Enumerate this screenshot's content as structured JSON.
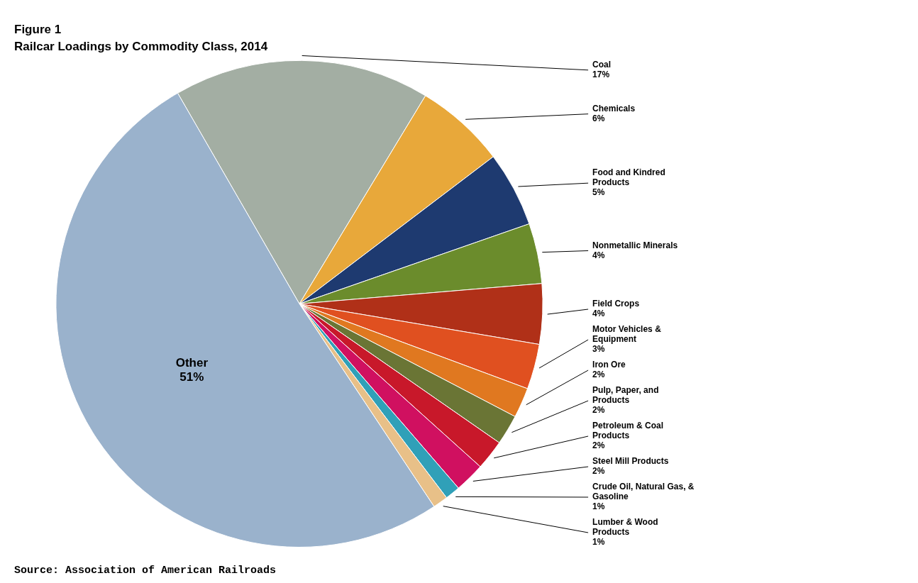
{
  "chart_data": {
    "type": "pie",
    "title": "Figure 1",
    "subtitle": "Railcar Loadings by Commodity Class, 2014",
    "categories": [
      "Coal",
      "Chemicals",
      "Food and Kindred\nProducts",
      "Nonmetallic Minerals",
      "Field Crops",
      "Motor Vehicles &\nEquipment",
      "Iron Ore",
      "Pulp, Paper, and\nProducts",
      "Petroleum & Coal\nProducts",
      "Steel Mill Products",
      "Crude Oil, Natural Gas, &\nGasoline",
      "Lumber & Wood\nProducts",
      "Other"
    ],
    "values": [
      17,
      6,
      5,
      4,
      4,
      3,
      2,
      2,
      2,
      2,
      1,
      1,
      51
    ],
    "value_labels": [
      "17%",
      "6%",
      "5%",
      "4%",
      "4%",
      "3%",
      "2%",
      "2%",
      "2%",
      "2%",
      "1%",
      "1%",
      "51%"
    ],
    "colors": [
      "#a3aea3",
      "#e8a83a",
      "#1e3a70",
      "#6b8c2c",
      "#b03018",
      "#e05020",
      "#e07820",
      "#6a7535",
      "#c8182a",
      "#d01060",
      "#30a0b8",
      "#e8c088",
      "#9ab2cc"
    ],
    "data_labels": true,
    "annotations": [
      "Source: Association of American Railroads"
    ]
  }
}
